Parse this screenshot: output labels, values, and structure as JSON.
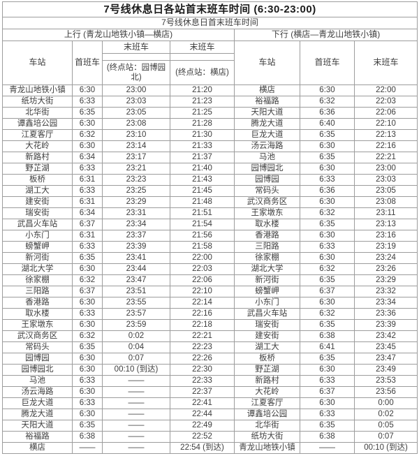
{
  "title": "7号线休息日各站首末班车时间 (6:30-23:00)",
  "subtitle": "7号线休息日首末班车时间",
  "directions": {
    "up": "上行 (青龙山地铁小镇—横店)",
    "down": "下行 (横店—青龙山地铁小镇)"
  },
  "header": {
    "station": "车站",
    "first_train": "首班车",
    "last_train": "末班车",
    "dest_yuanboyuanbei": "(终点站：园博园北)",
    "dest_hengdian": "(终点站：横店)"
  },
  "colors": {
    "border": "#9c9c9c",
    "text": "#3d3d3d",
    "title_text": "#1b1b1b",
    "background": "#ffffff"
  },
  "rows": [
    [
      "青龙山地铁小镇",
      "6:30",
      "23:00",
      "21:20",
      "横店",
      "6:30",
      "22:00"
    ],
    [
      "纸坊大街",
      "6:33",
      "23:03",
      "21:23",
      "裕福路",
      "6:32",
      "22:03"
    ],
    [
      "北华街",
      "6:35",
      "23:05",
      "21:25",
      "天阳大道",
      "6:36",
      "22:06"
    ],
    [
      "谭鑫培公园",
      "6:30",
      "23:08",
      "21:28",
      "腾龙大道",
      "6:40",
      "22:10"
    ],
    [
      "江夏客厅",
      "6:32",
      "23:10",
      "21:30",
      "巨龙大道",
      "6:35",
      "22:13"
    ],
    [
      "大花岭",
      "6:30",
      "23:14",
      "21:33",
      "汤云海路",
      "6:30",
      "22:16"
    ],
    [
      "新路村",
      "6:34",
      "23:17",
      "21:37",
      "马池",
      "6:35",
      "22:21"
    ],
    [
      "野芷湖",
      "6:33",
      "23:21",
      "21:40",
      "园博园北",
      "6:30",
      "23:00"
    ],
    [
      "板桥",
      "6:31",
      "23:23",
      "21:43",
      "园博园",
      "6:33",
      "23:03"
    ],
    [
      "湖工大",
      "6:33",
      "23:25",
      "21:45",
      "常码头",
      "6:36",
      "23:05"
    ],
    [
      "建安街",
      "6:31",
      "23:29",
      "21:48",
      "武汉商务区",
      "6:30",
      "23:08"
    ],
    [
      "瑞安街",
      "6:34",
      "23:31",
      "21:51",
      "王家墩东",
      "6:32",
      "23:11"
    ],
    [
      "武昌火车站",
      "6:37",
      "23:34",
      "21:54",
      "取水楼",
      "6:35",
      "23:13"
    ],
    [
      "小东门",
      "6:31",
      "23:37",
      "21:56",
      "香港路",
      "6:30",
      "23:16"
    ],
    [
      "螃蟹岬",
      "6:33",
      "23:39",
      "21:58",
      "三阳路",
      "6:33",
      "23:19"
    ],
    [
      "新河街",
      "6:35",
      "23:41",
      "22:00",
      "徐家棚",
      "6:30",
      "23:24"
    ],
    [
      "湖北大学",
      "6:30",
      "23:44",
      "22:03",
      "湖北大学",
      "6:32",
      "23:26"
    ],
    [
      "徐家棚",
      "6:32",
      "23:47",
      "22:06",
      "新河街",
      "6:35",
      "23:29"
    ],
    [
      "三阳路",
      "6:37",
      "23:51",
      "22:10",
      "螃蟹岬",
      "6:37",
      "23:32"
    ],
    [
      "香港路",
      "6:30",
      "23:55",
      "22:14",
      "小东门",
      "6:30",
      "23:34"
    ],
    [
      "取水楼",
      "6:33",
      "23:57",
      "22:16",
      "武昌火车站",
      "6:32",
      "23:36"
    ],
    [
      "王家墩东",
      "6:30",
      "23:59",
      "22:18",
      "瑞安街",
      "6:35",
      "23:39"
    ],
    [
      "武汉商务区",
      "6:32",
      "0:02",
      "22:21",
      "建安街",
      "6:38",
      "23:42"
    ],
    [
      "常码头",
      "6:35",
      "0:04",
      "22:23",
      "湖工大",
      "6:41",
      "23:45"
    ],
    [
      "园博园",
      "6:30",
      "0:07",
      "22:26",
      "板桥",
      "6:35",
      "23:47"
    ],
    [
      "园博园北",
      "6:30",
      "00:10 (到达)",
      "22:30",
      "野芷湖",
      "6:30",
      "23:49"
    ],
    [
      "马池",
      "6:33",
      "——",
      "22:33",
      "新路村",
      "6:33",
      "23:53"
    ],
    [
      "汤云海路",
      "6:30",
      "——",
      "22:37",
      "大花岭",
      "6:37",
      "23:56"
    ],
    [
      "巨龙大道",
      "6:33",
      "——",
      "22:41",
      "江夏客厅",
      "6:30",
      "0:00"
    ],
    [
      "腾龙大道",
      "6:30",
      "——",
      "22:44",
      "谭鑫培公园",
      "6:33",
      "0:02"
    ],
    [
      "天阳大道",
      "6:35",
      "——",
      "22:49",
      "北华街",
      "6:35",
      "0:05"
    ],
    [
      "裕福路",
      "6:38",
      "——",
      "22:52",
      "纸坊大街",
      "6:38",
      "0:07"
    ],
    [
      "横店",
      "——",
      "——",
      "22:54 (到达)",
      "青龙山地铁小镇",
      "——",
      "00:10 (到达)"
    ]
  ]
}
